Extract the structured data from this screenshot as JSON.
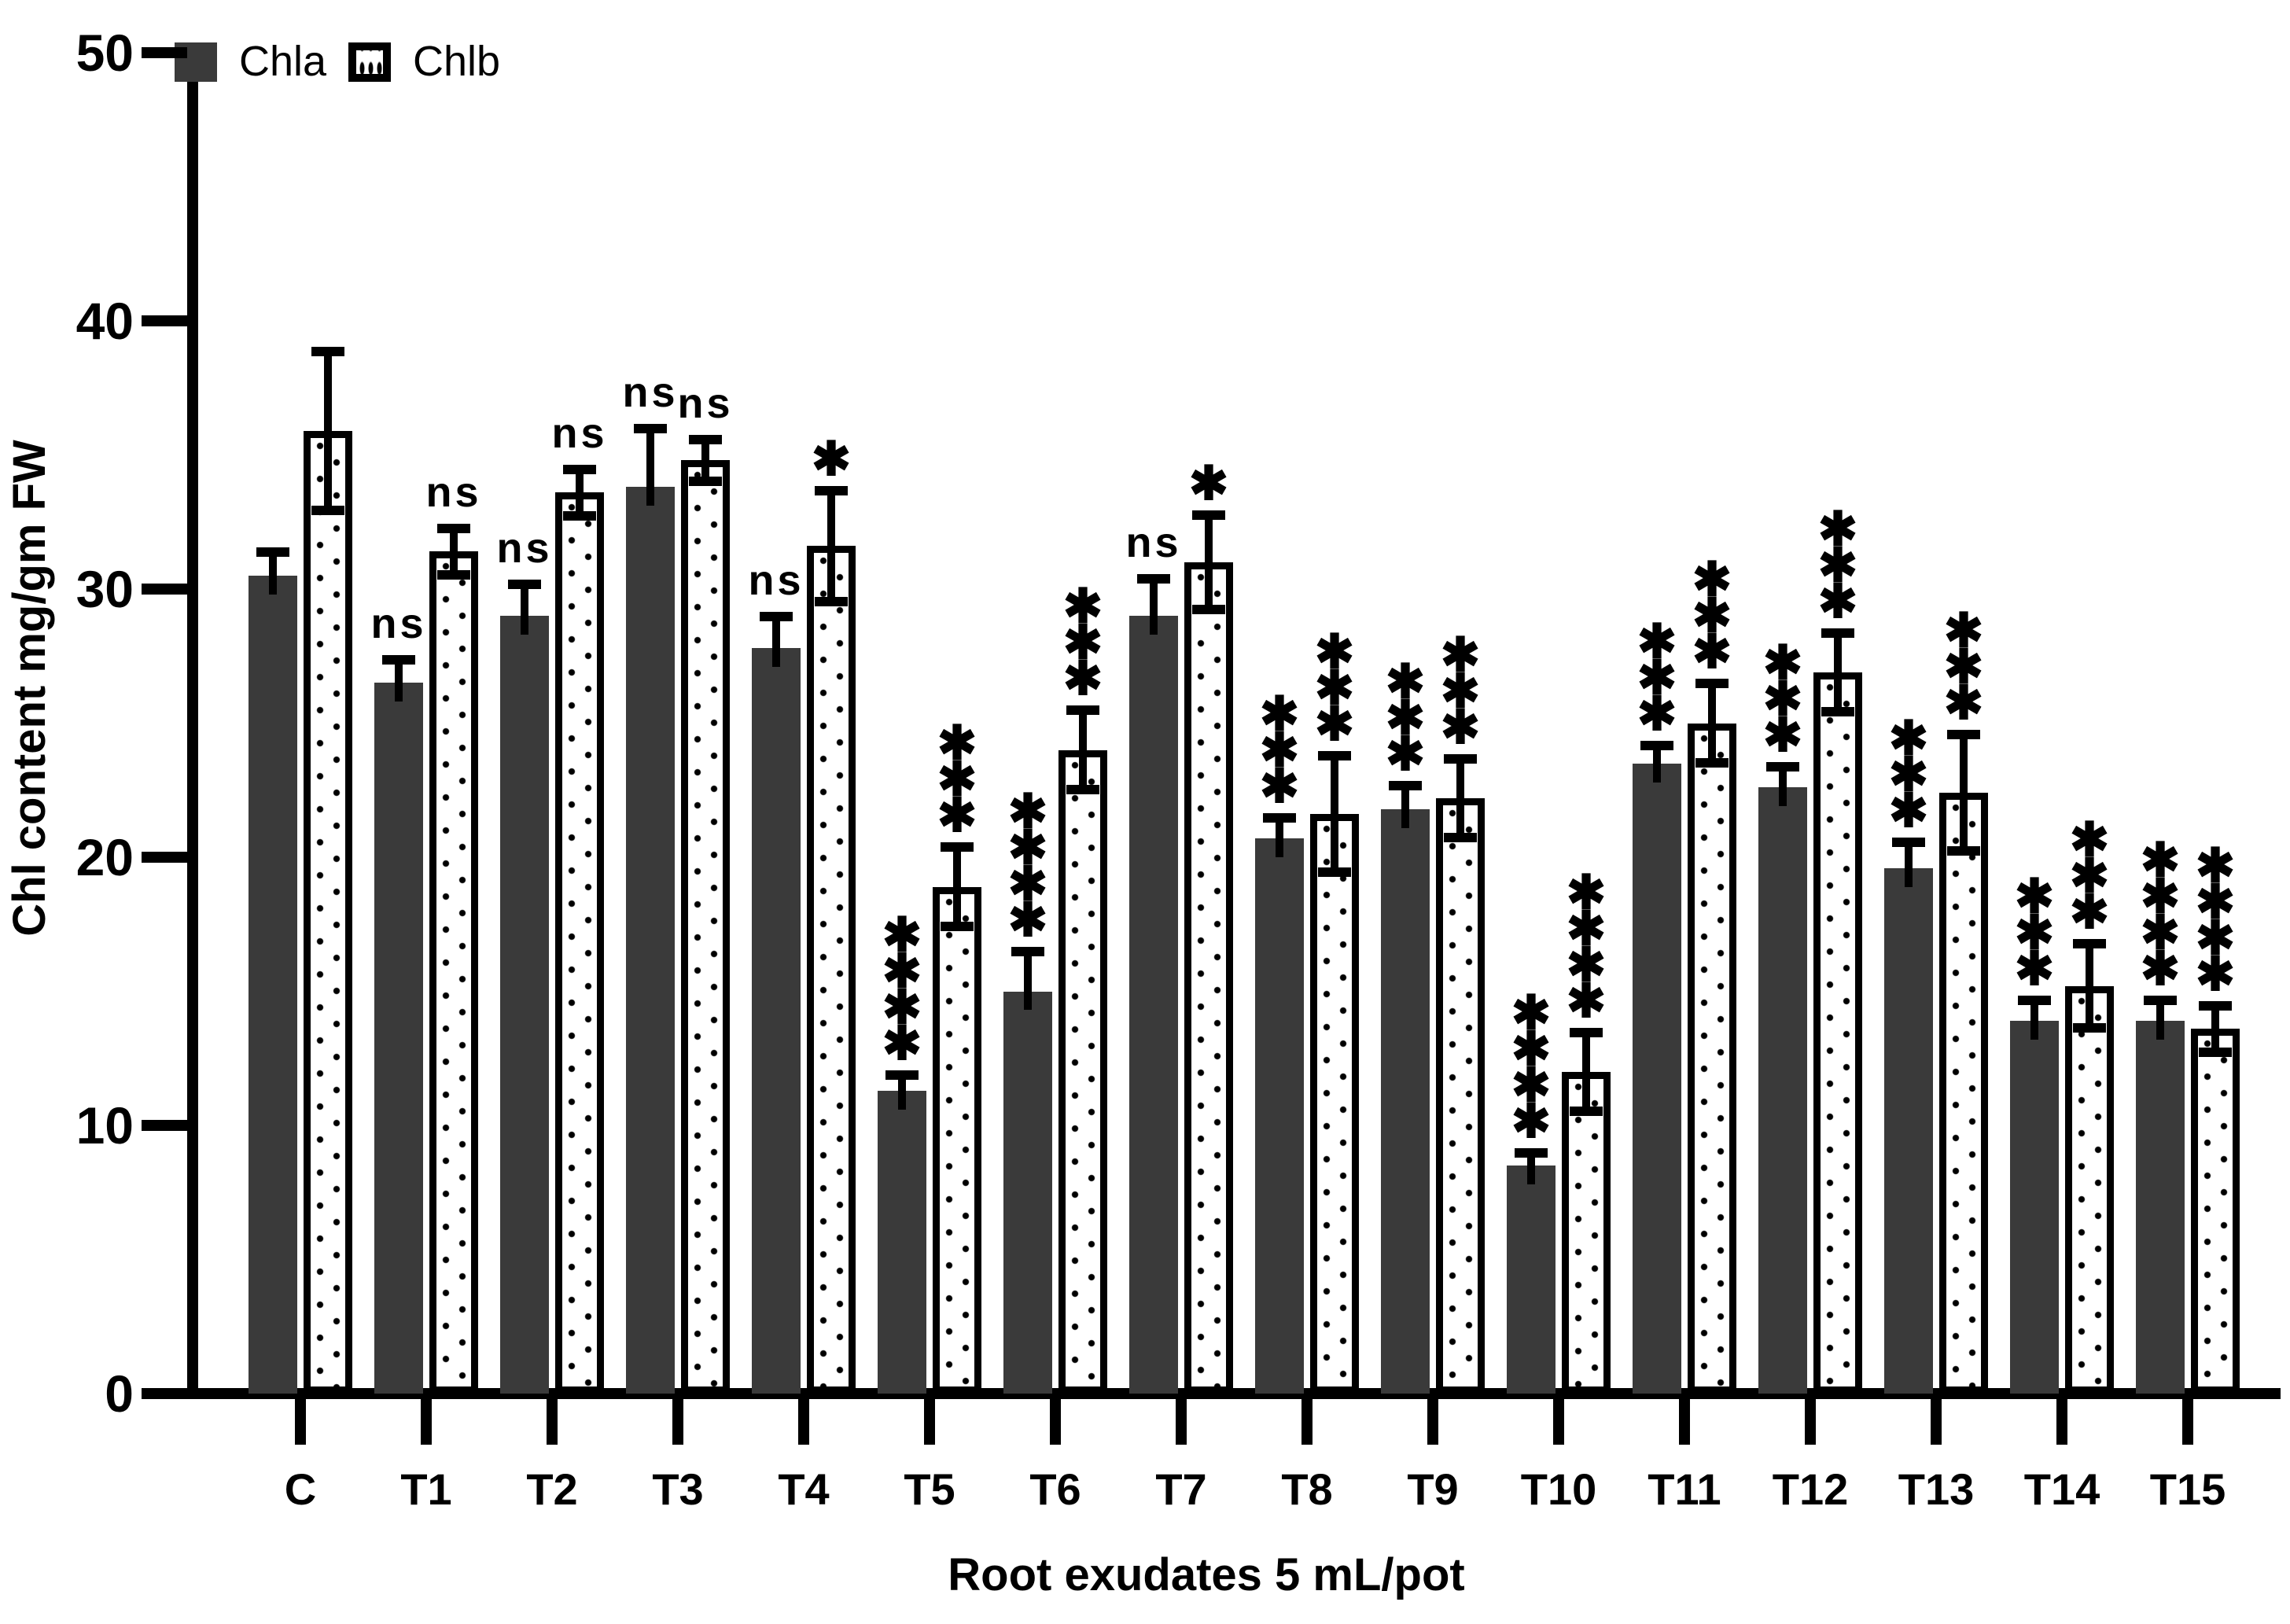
{
  "figure": {
    "background_color": "#ffffff",
    "axis_color": "#000000",
    "bar_colors": {
      "chla_fill": "#3a3a3a",
      "chlb_fill": "#ffffff",
      "chlb_border": "#000000"
    }
  },
  "legend": {
    "items": [
      {
        "label": "Chla",
        "swatch": "solid-dark-square"
      },
      {
        "label": "Chlb",
        "swatch": "dotted-outline-square"
      }
    ]
  },
  "chart_data": {
    "type": "bar",
    "title": "",
    "xlabel": "Root exudates 5 mL/pot",
    "ylabel": "Chl content mg/gm FW",
    "ylim": [
      0,
      50
    ],
    "yticks": [
      0,
      10,
      20,
      30,
      40,
      50
    ],
    "grid": false,
    "legend_position": "top-left-inside",
    "error_bars": "sd",
    "significance_note": "ns = not significant; asterisks = significance vs control",
    "categories": [
      "C",
      "T1",
      "T2",
      "T3",
      "T4",
      "T5",
      "T6",
      "T7",
      "T8",
      "T9",
      "T10",
      "T11",
      "T12",
      "T13",
      "T14",
      "T15"
    ],
    "series": [
      {
        "name": "Chla",
        "style": "solid",
        "values": [
          30.5,
          26.5,
          29.0,
          33.8,
          27.8,
          11.3,
          15.0,
          29.0,
          20.7,
          21.8,
          8.5,
          23.5,
          22.6,
          19.6,
          13.9,
          13.9
        ],
        "errors": [
          0.9,
          0.9,
          1.2,
          2.2,
          1.2,
          0.6,
          1.5,
          1.4,
          0.8,
          0.9,
          0.5,
          0.7,
          0.8,
          1.0,
          0.8,
          0.8
        ],
        "annotations": [
          "",
          "ns",
          "ns",
          "ns",
          "ns",
          "****",
          "****",
          "ns",
          "***",
          "***",
          "****",
          "***",
          "***",
          "***",
          "***",
          "****"
        ]
      },
      {
        "name": "Chlb",
        "style": "dotted-outline",
        "values": [
          35.9,
          31.4,
          33.6,
          34.8,
          31.6,
          18.9,
          24.0,
          31.0,
          21.6,
          22.2,
          12.0,
          25.0,
          26.9,
          22.4,
          15.2,
          13.6
        ],
        "errors": [
          3.0,
          0.9,
          0.9,
          0.8,
          2.1,
          1.5,
          1.5,
          1.8,
          2.2,
          1.5,
          1.5,
          1.5,
          1.5,
          2.2,
          1.6,
          0.9
        ],
        "annotations": [
          "",
          "ns",
          "ns",
          "ns",
          "*",
          "***",
          "***",
          "*",
          "***",
          "***",
          "****",
          "***",
          "***",
          "***",
          "***",
          "****"
        ]
      }
    ]
  }
}
